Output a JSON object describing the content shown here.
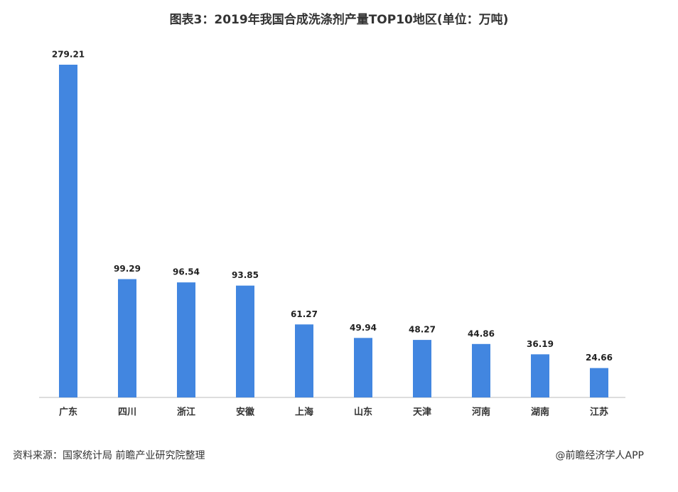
{
  "chart_data": {
    "type": "bar",
    "title": "图表3：2019年我国合成洗涤剂产量TOP10地区(单位：万吨)",
    "categories": [
      "广东",
      "四川",
      "浙江",
      "安徽",
      "上海",
      "山东",
      "天津",
      "河南",
      "湖南",
      "江苏"
    ],
    "values": [
      279.21,
      99.29,
      96.54,
      93.85,
      61.27,
      49.94,
      48.27,
      44.86,
      36.19,
      24.66
    ],
    "color": "#4286e0",
    "source": "资料来源：国家统计局 前瞻产业研究院整理",
    "credit": "@前瞻经济学人APP"
  }
}
